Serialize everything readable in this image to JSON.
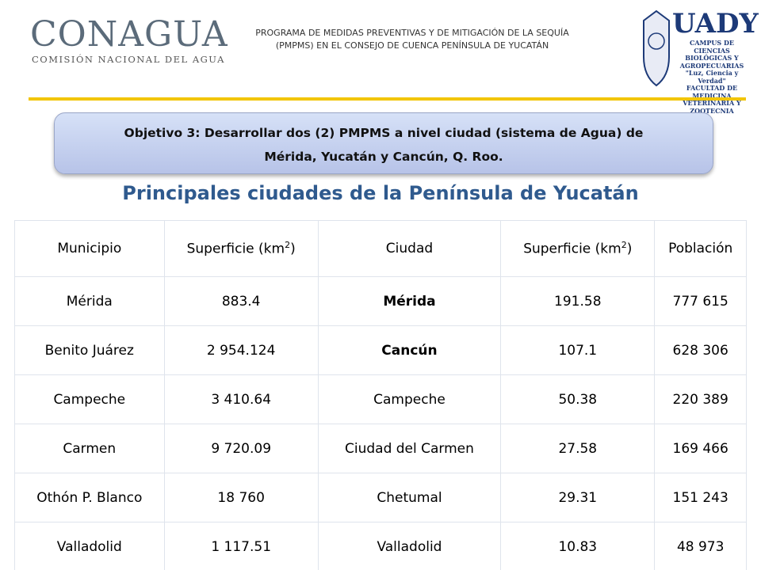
{
  "header": {
    "logo_left": {
      "name": "CONAGUA",
      "subtitle": "COMISIÓN NACIONAL DEL AGUA"
    },
    "center": [
      "PROGRAMA DE MEDIDAS PREVENTIVAS Y DE MITIGACIÓN DE LA SEQUÍA",
      "(PMPMS) EN EL CONSEJO DE CUENCA PENÍNSULA DE YUCATÁN"
    ],
    "logo_right": {
      "name": "UADY",
      "lines": [
        "CAMPUS DE",
        "CIENCIAS",
        "BIOLÓGICAS Y",
        "AGROPECUARIAS",
        "\"Luz, Ciencia y Verdad\"",
        "FACULTAD DE MEDICINA",
        "VETERINARIA Y ZOOTECNIA"
      ]
    }
  },
  "objective": [
    "Objetivo 3: Desarrollar dos (2) PMPMS a nivel ciudad (sistema de Agua)  de",
    "Mérida, Yucatán y Cancún, Q. Roo."
  ],
  "title": "Principales ciudades de la Península de Yucatán",
  "table": {
    "columns": [
      "Municipio",
      {
        "text": "Superficie (km",
        "sup": "2",
        "after": ")"
      },
      "Ciudad",
      {
        "text": "Superficie (km",
        "sup": "2",
        "after": ")"
      },
      "Población"
    ],
    "rows": [
      [
        "Mérida",
        "883.4",
        "Mérida",
        "191.58",
        "777 615"
      ],
      [
        "Benito Juárez",
        "2 954.124",
        "Cancún",
        "107.1",
        "628 306"
      ],
      [
        "Campeche",
        "3 410.64",
        "Campeche",
        "50.38",
        "220 389"
      ],
      [
        "Carmen",
        "9 720.09",
        "Ciudad del Carmen",
        "27.58",
        "169 466"
      ],
      [
        "Othón P. Blanco",
        "18 760",
        "Chetumal",
        "29.31",
        "151 243"
      ],
      [
        "Valladolid",
        "1 117.51",
        "Valladolid",
        "10.83",
        "48 973"
      ]
    ]
  }
}
